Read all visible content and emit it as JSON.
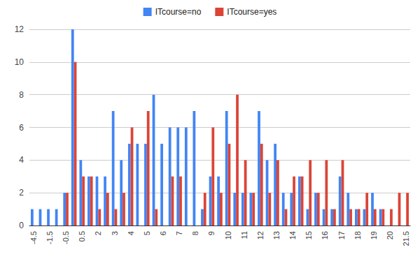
{
  "chart_data": {
    "type": "bar",
    "categories": [
      "-4.5",
      null,
      "-1.5",
      null,
      "-0.5",
      null,
      "0.5",
      null,
      "2",
      null,
      "3",
      null,
      "4",
      null,
      "5",
      null,
      "6",
      null,
      "7",
      null,
      "8",
      null,
      "9",
      null,
      "10",
      null,
      "11",
      null,
      "12",
      null,
      "13",
      null,
      "14",
      null,
      "15",
      null,
      "16",
      null,
      "17",
      null,
      "18",
      null,
      "19",
      null,
      "20",
      null,
      "21.5"
    ],
    "series": [
      {
        "name": "ITcourse=no",
        "color": "#4285f4",
        "values": [
          1,
          1,
          1,
          1,
          2,
          12,
          4,
          3,
          3,
          3,
          7,
          4,
          5,
          5,
          5,
          8,
          5,
          6,
          6,
          6,
          7,
          1,
          3,
          3,
          7,
          2,
          2,
          2,
          7,
          4,
          5,
          2,
          2,
          3,
          1,
          2,
          1,
          1,
          3,
          2,
          1,
          1,
          2,
          1,
          0,
          0,
          0
        ]
      },
      {
        "name": "ITcourse=yes",
        "color": "#db4437",
        "values": [
          0,
          0,
          0,
          0,
          2,
          10,
          3,
          3,
          1,
          2,
          1,
          2,
          6,
          0,
          7,
          1,
          0,
          3,
          3,
          0,
          0,
          2,
          6,
          2,
          5,
          8,
          4,
          2,
          5,
          2,
          4,
          1,
          3,
          3,
          4,
          2,
          4,
          1,
          4,
          1,
          1,
          2,
          1,
          1,
          1,
          2,
          2
        ]
      }
    ],
    "ylim": [
      0,
      12
    ],
    "yticks": [
      0,
      2,
      4,
      6,
      8,
      10,
      12
    ],
    "grid": true,
    "legend": "top"
  }
}
